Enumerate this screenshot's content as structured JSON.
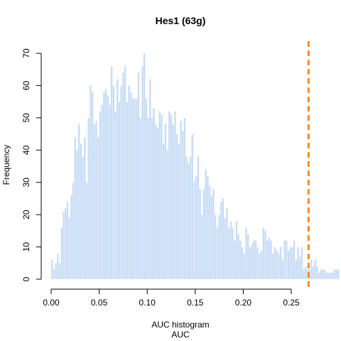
{
  "chart_data": {
    "type": "bar",
    "title": "Hes1 (63g)",
    "xlabel": "AUC histogram",
    "xlabel2": "AUC",
    "ylabel": "Frequency",
    "xlim": [
      0.0,
      0.25
    ],
    "ylim": [
      0,
      70
    ],
    "x_ticks": [
      "0.00",
      "0.05",
      "0.10",
      "0.15",
      "0.20",
      "0.25"
    ],
    "y_ticks": [
      "0",
      "10",
      "20",
      "30",
      "40",
      "50",
      "60",
      "70"
    ],
    "bin_width": 0.002,
    "bin_start": 0.0,
    "values": [
      6,
      3,
      5,
      8,
      5,
      16,
      21,
      22,
      24,
      19,
      26,
      30,
      44,
      40,
      48,
      42,
      38,
      44,
      30,
      50,
      60,
      58,
      48,
      49,
      44,
      52,
      54,
      58,
      59,
      57,
      54,
      66,
      60,
      52,
      62,
      55,
      60,
      64,
      66,
      55,
      60,
      58,
      56,
      56,
      56,
      64,
      50,
      66,
      70,
      56,
      50,
      62,
      50,
      53,
      48,
      47,
      52,
      51,
      42,
      48,
      40,
      52,
      51,
      48,
      52,
      45,
      42,
      49,
      46,
      50,
      38,
      36,
      38,
      45,
      30,
      32,
      38,
      28,
      20,
      28,
      34,
      32,
      29,
      26,
      28,
      20,
      16,
      20,
      24,
      25,
      19,
      22,
      16,
      18,
      16,
      12,
      18,
      14,
      12,
      10,
      8,
      16,
      14,
      10,
      11,
      12,
      12,
      10,
      8,
      9,
      16,
      15,
      12,
      13,
      12,
      8,
      10,
      9,
      8,
      10,
      6,
      12,
      12,
      9,
      10,
      10,
      12,
      6,
      10,
      7,
      10,
      3,
      4,
      3,
      3,
      6,
      4,
      6,
      4,
      2,
      3,
      3,
      3,
      2,
      2,
      2,
      2,
      3,
      3,
      3
    ],
    "threshold": 0.268,
    "bar_color": "#c6dbf5",
    "threshold_color": "#ff8c1a"
  }
}
